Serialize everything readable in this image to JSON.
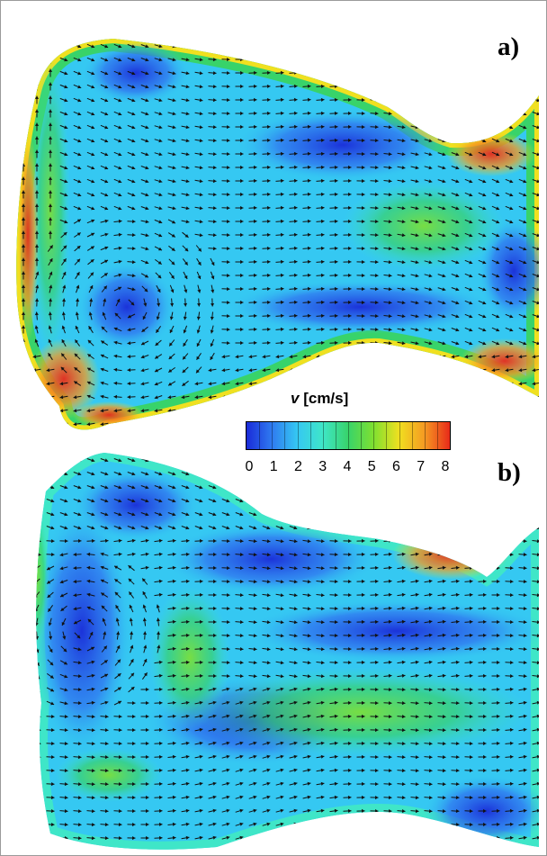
{
  "panels": [
    {
      "id": "a",
      "label": "a)"
    },
    {
      "id": "b",
      "label": "b)"
    }
  ],
  "colorbar": {
    "variable": "v",
    "unit": "[cm/s]",
    "min": 0,
    "max": 8,
    "ticks": [
      "0",
      "1",
      "2",
      "3",
      "4",
      "5",
      "6",
      "7",
      "8"
    ],
    "colors": [
      "#1a2bd8",
      "#2f7bf0",
      "#35c8f2",
      "#3fe6c8",
      "#38d36a",
      "#7fe030",
      "#f0e020",
      "#f59a22",
      "#e82a1a"
    ]
  }
}
